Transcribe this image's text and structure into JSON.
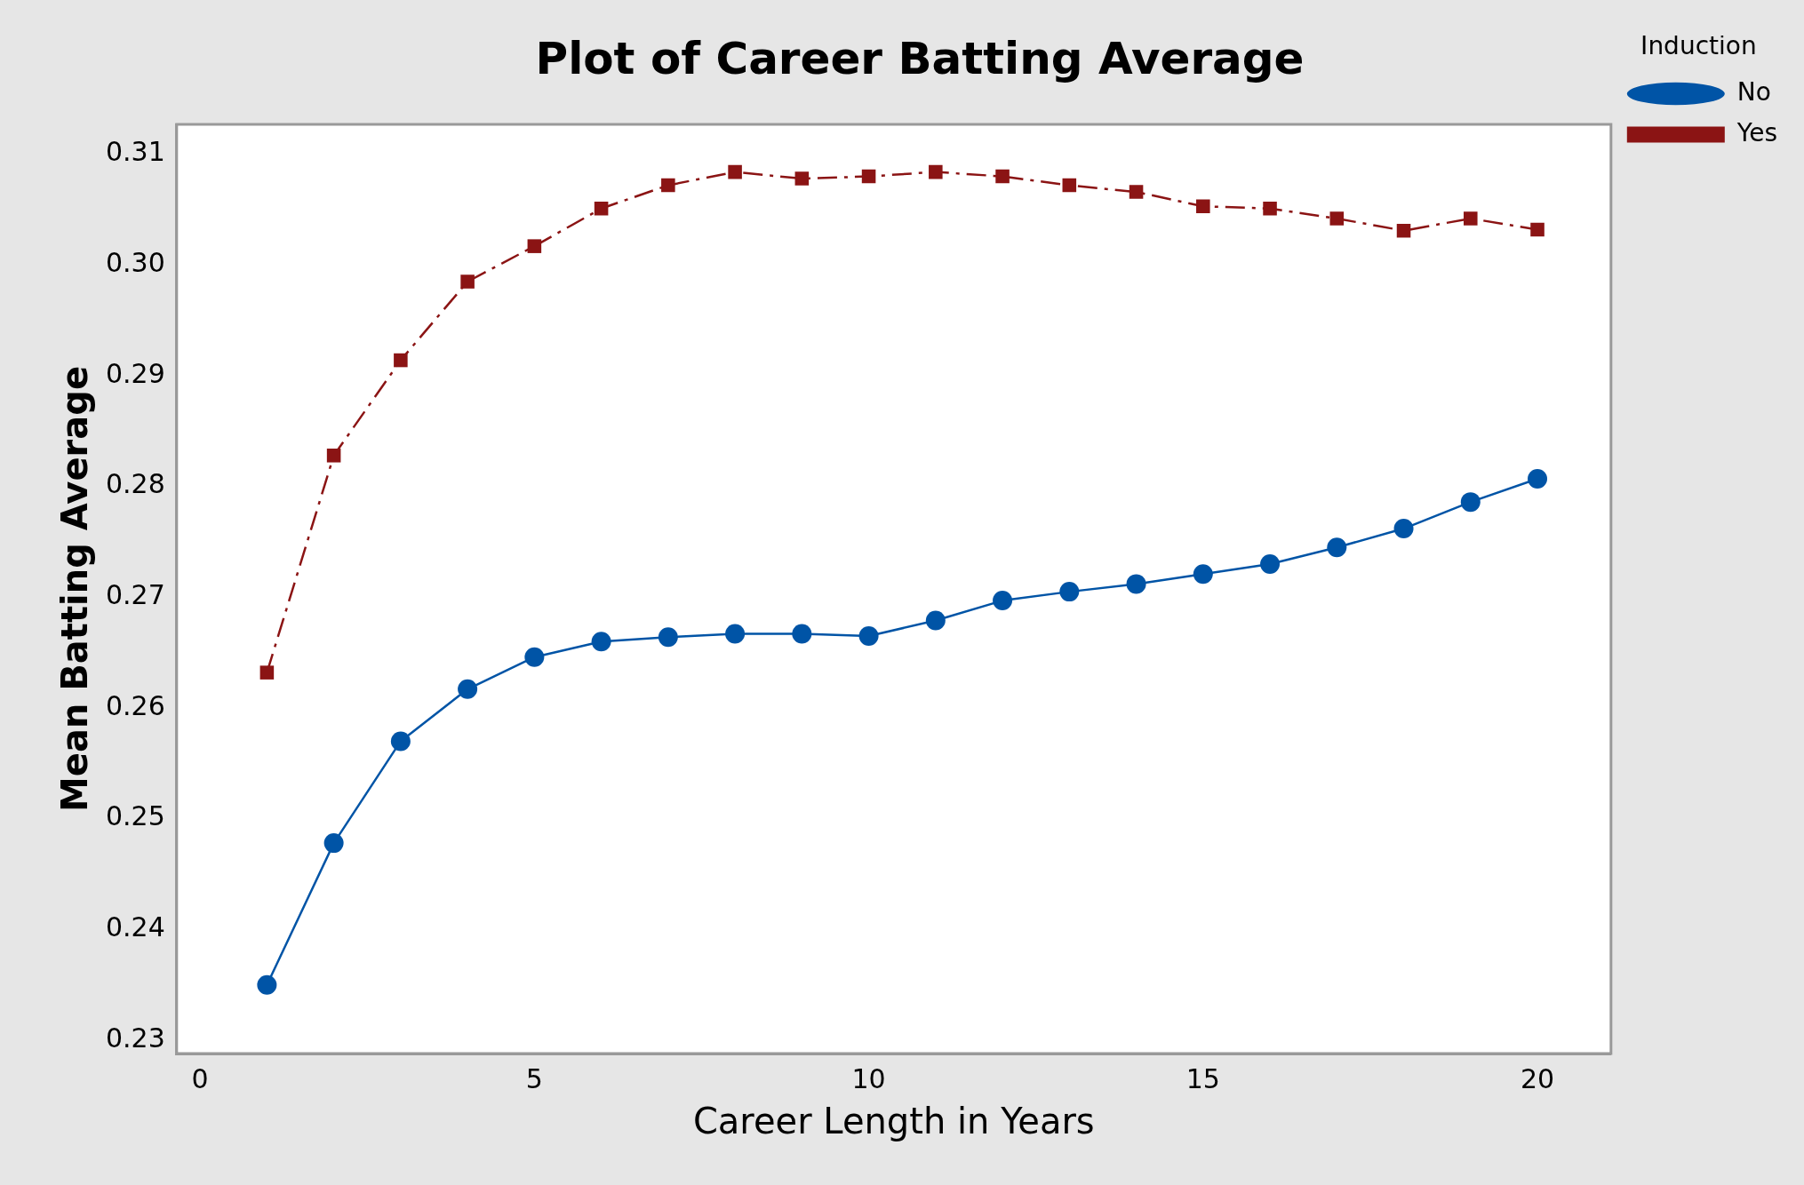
{
  "chart_data": {
    "type": "line",
    "title": "Plot of Career Batting Average",
    "xlabel": "Career Length in Years",
    "ylabel": "Mean Batting Average",
    "legend_title": "Induction",
    "x": [
      1,
      2,
      3,
      4,
      5,
      6,
      7,
      8,
      9,
      10,
      11,
      12,
      13,
      14,
      15,
      16,
      17,
      18,
      19,
      20
    ],
    "series": [
      {
        "name": "No",
        "color": "#0054a6",
        "marker": "circle",
        "line_style": "solid",
        "values": [
          0.235,
          0.2478,
          0.257,
          0.2617,
          0.2646,
          0.266,
          0.2664,
          0.2667,
          0.2667,
          0.2665,
          0.2679,
          0.2697,
          0.2705,
          0.2712,
          0.2721,
          0.273,
          0.2745,
          0.2762,
          0.2786,
          0.2807
        ]
      },
      {
        "name": "Yes",
        "color": "#8b1414",
        "marker": "square",
        "line_style": "dashed",
        "values": [
          0.2632,
          0.2828,
          0.2914,
          0.2985,
          0.3017,
          0.3051,
          0.3072,
          0.3084,
          0.3078,
          0.308,
          0.3084,
          0.308,
          0.3072,
          0.3066,
          0.3053,
          0.3051,
          0.3042,
          0.3031,
          0.3042,
          0.3032
        ]
      }
    ],
    "xlim": [
      -0.35,
      21.1
    ],
    "xticks": [
      0,
      5,
      10,
      15,
      20
    ],
    "ylim": [
      0.2288,
      0.3127
    ],
    "yticks": [
      {
        "value": 0.23,
        "label": "0.23"
      },
      {
        "value": 0.24,
        "label": "0.24"
      },
      {
        "value": 0.25,
        "label": "0.25"
      },
      {
        "value": 0.26,
        "label": "0.26"
      },
      {
        "value": 0.27,
        "label": "0.27"
      },
      {
        "value": 0.28,
        "label": "0.28"
      },
      {
        "value": 0.29,
        "label": "0.29"
      },
      {
        "value": 0.3,
        "label": "0.30"
      },
      {
        "value": 0.31,
        "label": "0.31"
      }
    ],
    "grid": false,
    "legend": "top right"
  }
}
